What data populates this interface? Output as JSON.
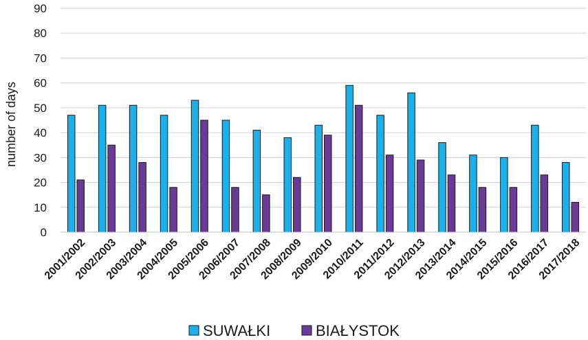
{
  "chart_data": {
    "type": "bar",
    "title": "",
    "xlabel": "",
    "ylabel": "number of days",
    "ylim": [
      0,
      90
    ],
    "yticks": [
      0,
      10,
      20,
      30,
      40,
      50,
      60,
      70,
      80,
      90
    ],
    "grid": true,
    "legend_position": "bottom",
    "categories": [
      "2001/2002",
      "2002/2003",
      "2003/2004",
      "2004/2005",
      "2005/2006",
      "2006/2007",
      "2007/2008",
      "2008/2009",
      "2009/2010",
      "2010/2011",
      "2011/2012",
      "2012/2013",
      "2013/2014",
      "2014/2015",
      "2015/2016",
      "2016/2017",
      "2017/2018"
    ],
    "series": [
      {
        "name": "SUWAŁKI",
        "color": "#1ab0ea",
        "values": [
          47,
          51,
          51,
          47,
          53,
          45,
          41,
          38,
          43,
          59,
          47,
          56,
          36,
          31,
          30,
          43,
          28
        ]
      },
      {
        "name": "BIAŁYSTOK",
        "color": "#6b3a96",
        "values": [
          21,
          35,
          28,
          18,
          45,
          18,
          15,
          22,
          39,
          51,
          31,
          29,
          23,
          18,
          18,
          23,
          12
        ]
      }
    ]
  }
}
